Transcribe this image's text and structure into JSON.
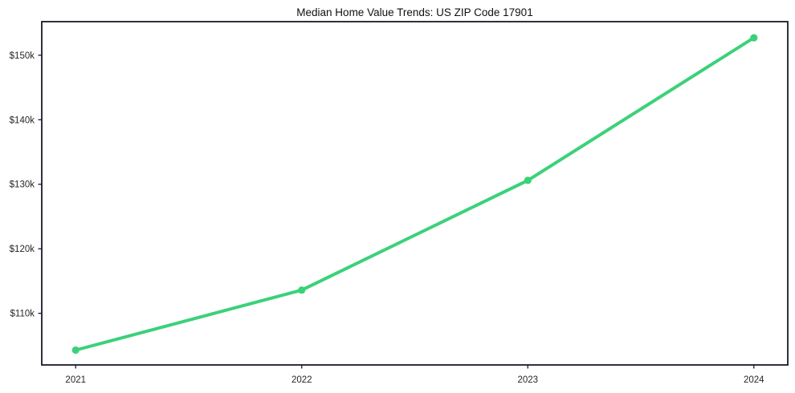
{
  "chart_data": {
    "type": "line",
    "title": "Median Home Value Trends: US ZIP Code 17901",
    "x": [
      2021,
      2022,
      2023,
      2024
    ],
    "series": [
      {
        "name": "Median home value",
        "values": [
          104.3,
          113.6,
          130.6,
          152.7
        ]
      }
    ],
    "unit": "USD thousands (k)",
    "xticks": [
      {
        "value": 2021,
        "label": "2021"
      },
      {
        "value": 2022,
        "label": "2022"
      },
      {
        "value": 2023,
        "label": "2023"
      },
      {
        "value": 2024,
        "label": "2024"
      }
    ],
    "yticks": [
      {
        "value": 110,
        "label": "$110k"
      },
      {
        "value": 120,
        "label": "$120k"
      },
      {
        "value": 130,
        "label": "$130k"
      },
      {
        "value": 140,
        "label": "$140k"
      },
      {
        "value": 150,
        "label": "$150k"
      }
    ],
    "xlim": [
      2020.85,
      2024.15
    ],
    "ylim": [
      102.0,
      155.2
    ],
    "grid": false,
    "legend": "none",
    "xlabel": "",
    "ylabel": "",
    "line_color": "#3bd17a",
    "marker": "circle",
    "marker_color": "#3bd17a",
    "line_width": 4,
    "marker_radius": 4.6,
    "frame_color": "#171b26",
    "tick_label_color": "#262626",
    "title_color": "#101010",
    "background_color": "#ffffff"
  }
}
